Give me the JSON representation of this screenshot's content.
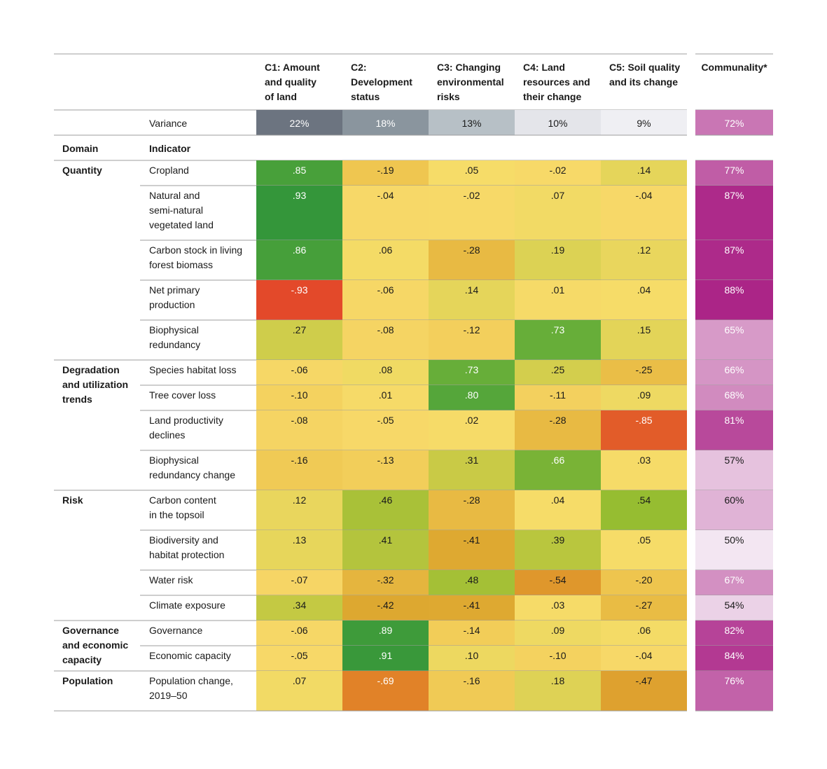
{
  "chart_data": {
    "type": "heatmap",
    "components": [
      [
        "C1: Amount",
        "and quality",
        "of land"
      ],
      [
        "C2:",
        "Development",
        "status"
      ],
      [
        "C3: Changing",
        "environmental",
        "risks"
      ],
      [
        "C4: Land",
        "resources and",
        "their change"
      ],
      [
        "C5: Soil quality",
        "and its change"
      ]
    ],
    "communality_header": "Communality*",
    "variance_label": "Variance",
    "variance": [
      "22%",
      "18%",
      "13%",
      "10%",
      "9%"
    ],
    "variance_communality": "72%",
    "domain_header": "Domain",
    "indicator_header": "Indicator",
    "domains": [
      {
        "name": [
          "Quantity"
        ],
        "rows": [
          {
            "indicator": [
              "Cropland"
            ],
            "values": [
              0.85,
              -0.19,
              0.05,
              -0.02,
              0.14
            ],
            "communality": "77%"
          },
          {
            "indicator": [
              "Natural and",
              "semi-natural",
              "vegetated land"
            ],
            "values": [
              0.93,
              -0.04,
              -0.02,
              0.07,
              -0.04
            ],
            "communality": "87%"
          },
          {
            "indicator": [
              "Carbon stock in living",
              "forest biomass"
            ],
            "values": [
              0.86,
              0.06,
              -0.28,
              0.19,
              0.12
            ],
            "communality": "87%"
          },
          {
            "indicator": [
              "Net primary",
              "production"
            ],
            "values": [
              -0.93,
              -0.06,
              0.14,
              0.01,
              0.04
            ],
            "communality": "88%"
          },
          {
            "indicator": [
              "Biophysical",
              "redundancy"
            ],
            "values": [
              0.27,
              -0.08,
              -0.12,
              0.73,
              0.15
            ],
            "communality": "65%"
          }
        ]
      },
      {
        "name": [
          "Degradation",
          "and utilization",
          "trends"
        ],
        "rows": [
          {
            "indicator": [
              "Species habitat loss"
            ],
            "values": [
              -0.06,
              0.08,
              0.73,
              0.25,
              -0.25
            ],
            "communality": "66%"
          },
          {
            "indicator": [
              "Tree cover loss"
            ],
            "values": [
              -0.1,
              0.01,
              0.8,
              -0.11,
              0.09
            ],
            "communality": "68%"
          },
          {
            "indicator": [
              "Land productivity",
              "declines"
            ],
            "values": [
              -0.08,
              -0.05,
              0.02,
              -0.28,
              -0.85
            ],
            "communality": "81%"
          },
          {
            "indicator": [
              "Biophysical",
              "redundancy change"
            ],
            "values": [
              -0.16,
              -0.13,
              0.31,
              0.66,
              0.03
            ],
            "communality": "57%"
          }
        ]
      },
      {
        "name": [
          "Risk"
        ],
        "rows": [
          {
            "indicator": [
              "Carbon content",
              "in the topsoil"
            ],
            "values": [
              0.12,
              0.46,
              -0.28,
              0.04,
              0.54
            ],
            "communality": "60%"
          },
          {
            "indicator": [
              "Biodiversity and",
              "habitat protection"
            ],
            "values": [
              0.13,
              0.41,
              -0.41,
              0.39,
              0.05
            ],
            "communality": "50%"
          },
          {
            "indicator": [
              "Water risk"
            ],
            "values": [
              -0.07,
              -0.32,
              0.48,
              -0.54,
              -0.2
            ],
            "communality": "67%"
          },
          {
            "indicator": [
              "Climate exposure"
            ],
            "values": [
              0.34,
              -0.42,
              -0.41,
              0.03,
              -0.27
            ],
            "communality": "54%"
          }
        ]
      },
      {
        "name": [
          "Governance",
          "and economic",
          "capacity"
        ],
        "rows": [
          {
            "indicator": [
              "Governance"
            ],
            "values": [
              -0.06,
              0.89,
              -0.14,
              0.09,
              0.06
            ],
            "communality": "82%"
          },
          {
            "indicator": [
              "Economic capacity"
            ],
            "values": [
              -0.05,
              0.91,
              0.1,
              -0.1,
              -0.04
            ],
            "communality": "84%"
          }
        ]
      },
      {
        "name": [
          "Population"
        ],
        "rows": [
          {
            "indicator": [
              "Population change,",
              "2019–50"
            ],
            "values": [
              0.07,
              -0.69,
              -0.16,
              0.18,
              -0.47
            ],
            "communality": "76%"
          }
        ]
      }
    ],
    "colors": {
      "variance_cells": [
        "#6c7480",
        "#8a959e",
        "#b7c0c6",
        "#e4e5ea",
        "#efeff3"
      ],
      "communality_scale": [
        "#f3e6f2",
        "#ab2587"
      ],
      "rule": "#9e9e9e"
    }
  }
}
